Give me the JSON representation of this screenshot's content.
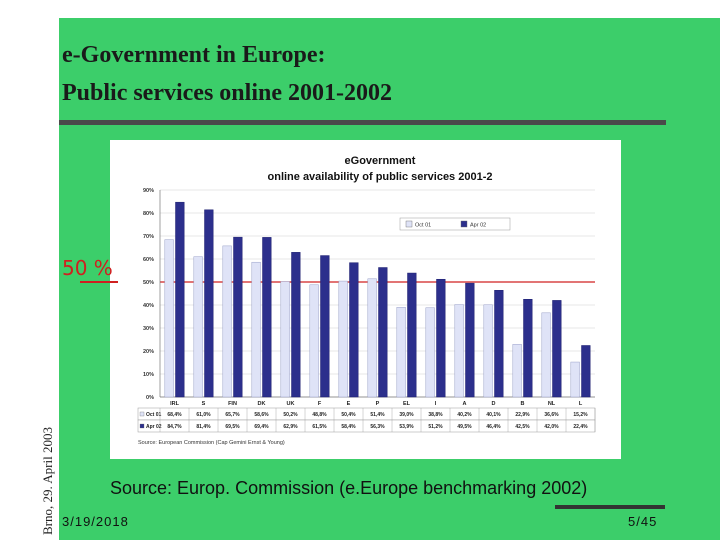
{
  "slide": {
    "title_line1": "e-Government in Europe:",
    "title_line2": "Public services online 2001-2002",
    "side_label": "Brno, 29. April 2003",
    "fifty_label": "50 %",
    "source_caption": "Source: Europ. Commission (e.Europe benchmarking 2002)",
    "date": "3/19/2018",
    "page": "5/45"
  },
  "chart_data": {
    "type": "bar",
    "title": "eGovernment",
    "subtitle": "online availability of public services 2001-2",
    "source_note": "Source: European Commission (Cap Gemini Ernst & Young)",
    "categories": [
      "IRL",
      "S",
      "FIN",
      "DK",
      "UK",
      "F",
      "E",
      "P",
      "EL",
      "I",
      "A",
      "D",
      "B",
      "NL",
      "L"
    ],
    "series": [
      {
        "name": "Oct 01",
        "color": "#dfe3f7",
        "values": [
          68.4,
          61.0,
          65.7,
          58.6,
          50.2,
          48.8,
          50.4,
          51.4,
          39.0,
          38.8,
          40.2,
          40.1,
          22.9,
          36.6,
          15.2
        ],
        "labels": [
          "68,4%",
          "61,0%",
          "65,7%",
          "58,6%",
          "50,2%",
          "48,8%",
          "50,4%",
          "51,4%",
          "39,0%",
          "38,8%",
          "40,2%",
          "40,1%",
          "22,9%",
          "36,6%",
          "15,2%"
        ]
      },
      {
        "name": "Apr 02",
        "color": "#2c2f8c",
        "values": [
          84.7,
          81.4,
          69.5,
          69.4,
          62.9,
          61.5,
          58.4,
          56.3,
          53.9,
          51.2,
          49.5,
          46.4,
          42.5,
          42.0,
          22.4
        ],
        "labels": [
          "84,7%",
          "81,4%",
          "69,5%",
          "69,4%",
          "62,9%",
          "61,5%",
          "58,4%",
          "56,3%",
          "53,9%",
          "51,2%",
          "49,5%",
          "46,4%",
          "42,5%",
          "42,0%",
          "22,4%"
        ]
      }
    ],
    "y_ticks": [
      "0%",
      "10%",
      "20%",
      "30%",
      "40%",
      "50%",
      "60%",
      "70%",
      "80%",
      "90%"
    ],
    "ylim": [
      0,
      90
    ],
    "reference_line": 50,
    "grid": true,
    "legend": "top-right"
  }
}
